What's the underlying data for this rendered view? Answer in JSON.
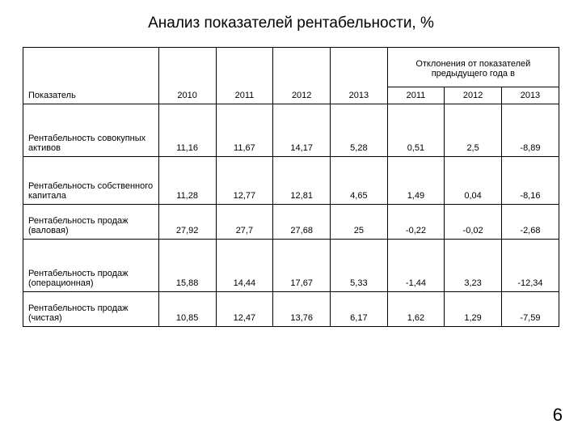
{
  "title": "Анализ показателей рентабельности, %",
  "page_number": "6",
  "table": {
    "col_indicator": "Показатель",
    "years": {
      "y2010": "2010",
      "y2011": "2011",
      "y2012": "2012",
      "y2013": "2013"
    },
    "dev_header": "Отклонения от показателей предыдущего года в",
    "dev_years": {
      "d2011": "2011",
      "d2012": "2012",
      "d2013": "2013"
    },
    "rows": [
      {
        "label": "Рентабельность совокупных активов",
        "v2010": "11,16",
        "v2011": "11,67",
        "v2012": "14,17",
        "v2013": "5,28",
        "d2011": "0,51",
        "d2012": "2,5",
        "d2013": "-8,89",
        "h": "tall"
      },
      {
        "label": "Рентабельность собственного капитала",
        "v2010": "11,28",
        "v2011": "12,77",
        "v2012": "12,81",
        "v2013": "4,65",
        "d2011": "1,49",
        "d2012": "0,04",
        "d2013": "-8,16",
        "h": "med"
      },
      {
        "label": "Рентабельность продаж (валовая)",
        "v2010": "27,92",
        "v2011": "27,7",
        "v2012": "27,68",
        "v2013": "25",
        "d2011": "-0,22",
        "d2012": "-0,02",
        "d2013": "-2,68",
        "h": "short"
      },
      {
        "label": "Рентабельность продаж (операционная)",
        "v2010": "15,88",
        "v2011": "14,44",
        "v2012": "17,67",
        "v2013": "5,33",
        "d2011": "-1,44",
        "d2012": "3,23",
        "d2013": "-12,34",
        "h": "tall"
      },
      {
        "label": "Рентабельность продаж (чистая)",
        "v2010": "10,85",
        "v2011": "12,47",
        "v2012": "13,76",
        "v2013": "6,17",
        "d2011": "1,62",
        "d2012": "1,29",
        "d2013": "-7,59",
        "h": "short"
      }
    ]
  }
}
